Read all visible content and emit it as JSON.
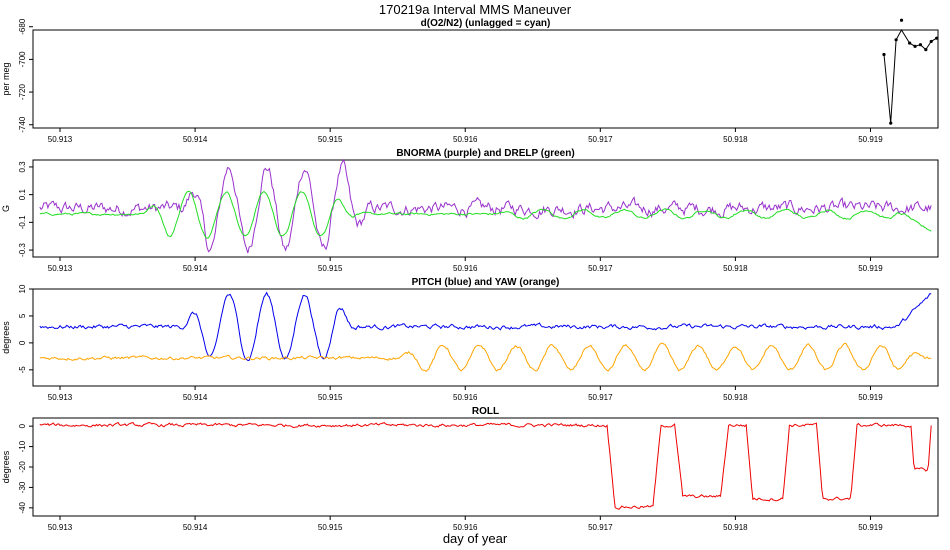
{
  "page": {
    "title": "170219a   Interval MMS Maneuver",
    "xlabel": "day of year"
  },
  "chart_data": [
    {
      "type": "scatter",
      "title": "d(O2/N2) (unlagged = cyan)",
      "ylabel": "per meg",
      "xlim": [
        50.9128,
        50.9195
      ],
      "ylim": [
        -742,
        -682
      ],
      "xticks": [
        "50.913",
        "50.914",
        "50.915",
        "50.916",
        "50.917",
        "50.918",
        "50.919"
      ],
      "yticks": [
        -680,
        -700,
        -720,
        -740
      ],
      "series": [
        {
          "name": "d(O2/N2)",
          "color": "#000000",
          "mode": "lines+points",
          "x": [
            50.9191,
            50.91915,
            50.91919,
            50.91923,
            50.91929,
            50.91933,
            50.91937,
            50.91941,
            50.91945,
            50.91949
          ],
          "y": [
            -697,
            -739,
            -688,
            -676,
            -690,
            -692,
            -691,
            -694,
            -689,
            -687
          ]
        }
      ]
    },
    {
      "type": "line",
      "title": "BNORMA (purple) and DRELP (green)",
      "ylabel": "G",
      "xlim": [
        50.9128,
        50.9195
      ],
      "ylim": [
        -0.35,
        0.35
      ],
      "xticks": [
        "50.913",
        "50.914",
        "50.915",
        "50.916",
        "50.917",
        "50.918",
        "50.919"
      ],
      "yticks": [
        0.3,
        0.1,
        -0.1,
        -0.3
      ],
      "series": [
        {
          "name": "BNORMA",
          "color": "#9932cc",
          "gen": {
            "start": 50.91285,
            "end": 50.91945,
            "step": 1e-05,
            "base": 0.0,
            "osc": [
              {
                "from": 50.9139,
                "to": 50.9153,
                "amp": 0.3,
                "period": 0.00028
              }
            ],
            "noise": 0.045
          }
        },
        {
          "name": "DRELP",
          "color": "#22dd22",
          "gen": {
            "start": 50.91285,
            "end": 50.91945,
            "step": 1e-05,
            "base": -0.04,
            "osc": [
              {
                "from": 50.9136,
                "to": 50.9152,
                "amp": 0.16,
                "period": 0.00028
              },
              {
                "from": 50.9162,
                "to": 50.9194,
                "amp": 0.03,
                "period": 0.0003
              }
            ],
            "noise": 0.008,
            "endslope": -0.12
          }
        }
      ]
    },
    {
      "type": "line",
      "title": "PITCH (blue) and YAW (orange)",
      "ylabel": "degrees",
      "xlim": [
        50.9128,
        50.9195
      ],
      "ylim": [
        -8,
        10
      ],
      "xticks": [
        "50.913",
        "50.914",
        "50.915",
        "50.916",
        "50.917",
        "50.918",
        "50.919"
      ],
      "yticks": [
        10,
        5,
        0,
        -5
      ],
      "series": [
        {
          "name": "PITCH",
          "color": "#0000ee",
          "gen": {
            "start": 50.91285,
            "end": 50.91945,
            "step": 1e-05,
            "base": 3.0,
            "osc": [
              {
                "from": 50.9139,
                "to": 50.9152,
                "amp": 6,
                "period": 0.00028
              }
            ],
            "noise": 0.4,
            "endslope": 6
          }
        },
        {
          "name": "YAW",
          "color": "#ffa500",
          "gen": {
            "start": 50.91285,
            "end": 50.91945,
            "step": 1e-05,
            "base": -2.8,
            "osc": [
              {
                "from": 50.9155,
                "to": 50.9194,
                "amp": 2.3,
                "period": 0.00027
              }
            ],
            "noise": 0.3
          }
        }
      ]
    },
    {
      "type": "line",
      "title": "ROLL",
      "ylabel": "degrees",
      "xlim": [
        50.9128,
        50.9195
      ],
      "ylim": [
        -44,
        4
      ],
      "xticks": [
        "50.913",
        "50.914",
        "50.915",
        "50.916",
        "50.917",
        "50.918",
        "50.919"
      ],
      "yticks": [
        0,
        -10,
        -20,
        -30,
        -40
      ],
      "series": [
        {
          "name": "ROLL",
          "color": "#ee0000",
          "gen": {
            "start": 50.91285,
            "end": 50.91945,
            "step": 1e-05,
            "base": 0.5,
            "dips": [
              {
                "from": 50.91705,
                "to": 50.91745,
                "depth": -40
              },
              {
                "from": 50.91755,
                "to": 50.91795,
                "depth": -35
              },
              {
                "from": 50.91808,
                "to": 50.9184,
                "depth": -36
              },
              {
                "from": 50.9186,
                "to": 50.9189,
                "depth": -36
              },
              {
                "from": 50.9193,
                "to": 50.91945,
                "depth": -22
              }
            ],
            "noise": 0.8
          }
        }
      ]
    }
  ]
}
